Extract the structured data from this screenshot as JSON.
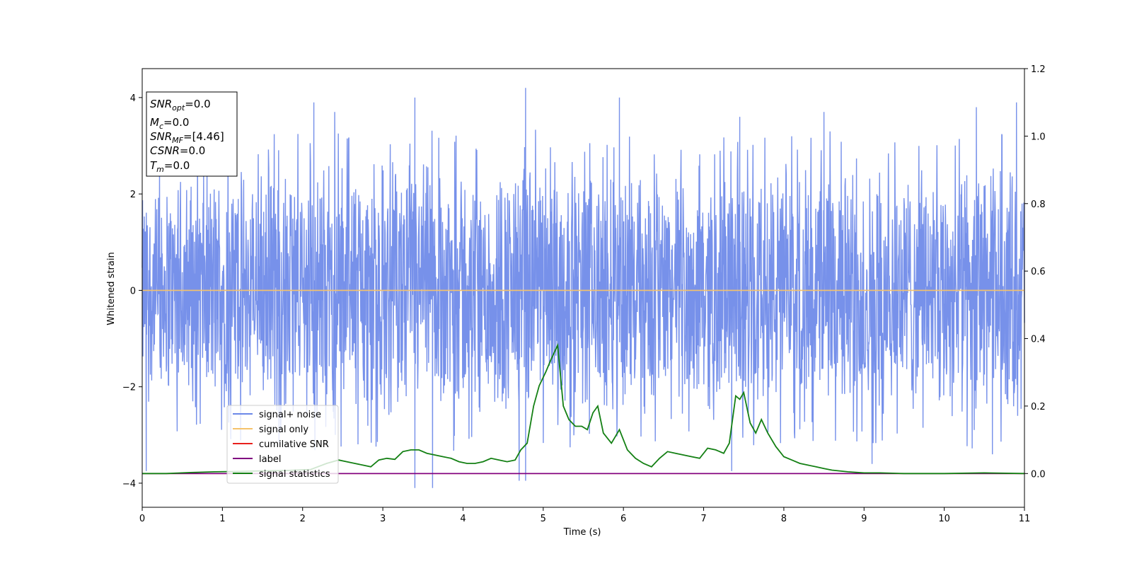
{
  "chart_data": {
    "type": "line",
    "xlabel": "Time (s)",
    "ylabel": "Whitened strain",
    "xlim": [
      0,
      11
    ],
    "ylim": [
      -4.5,
      4.6
    ],
    "y2lim": [
      -0.1,
      1.2
    ],
    "xticks": [
      "0",
      "1",
      "2",
      "3",
      "4",
      "5",
      "6",
      "7",
      "8",
      "9",
      "10",
      "11"
    ],
    "yticks": [
      "−4",
      "−2",
      "0",
      "2",
      "4"
    ],
    "y2ticks": [
      "0.0",
      "0.2",
      "0.4",
      "0.6",
      "0.8",
      "1.0",
      "1.2"
    ],
    "legend_position": "lower-left",
    "info_box": {
      "snr_opt": "=0.0",
      "mc": "=0.0",
      "snr_mf": "=[4.46]",
      "csnr": "=0.0",
      "tm": "=0.0"
    },
    "series": [
      {
        "name": "signal+ noise",
        "color": "#6b88e8",
        "axis": "left",
        "description_type": "noise",
        "envelope_upper": [
          [
            0,
            2.2
          ],
          [
            0.5,
            2.6
          ],
          [
            1,
            2.7
          ],
          [
            1.5,
            2.8
          ],
          [
            2,
            2.9
          ],
          [
            2.5,
            3.0
          ],
          [
            3,
            3.0
          ],
          [
            3.5,
            2.9
          ],
          [
            4,
            2.9
          ],
          [
            4.5,
            2.9
          ],
          [
            5,
            2.9
          ],
          [
            5.5,
            2.8
          ],
          [
            6,
            2.9
          ],
          [
            6.5,
            2.7
          ],
          [
            7,
            2.8
          ],
          [
            7.5,
            2.8
          ],
          [
            8,
            2.8
          ],
          [
            8.5,
            2.9
          ],
          [
            9,
            2.8
          ],
          [
            9.5,
            2.8
          ],
          [
            10,
            2.8
          ],
          [
            10.5,
            2.9
          ],
          [
            11,
            2.9
          ]
        ],
        "peaks": [
          [
            2.14,
            3.9
          ],
          [
            2.4,
            3.7
          ],
          [
            3.4,
            4.0
          ],
          [
            4.78,
            4.2
          ],
          [
            5.95,
            4.0
          ],
          [
            7.45,
            3.6
          ],
          [
            8.5,
            3.7
          ],
          [
            10.4,
            3.8
          ],
          [
            10.9,
            3.9
          ]
        ],
        "troughs": [
          [
            0.05,
            -3.75
          ],
          [
            3.4,
            -4.1
          ],
          [
            3.62,
            -4.1
          ],
          [
            4.7,
            -3.95
          ],
          [
            4.78,
            -3.95
          ],
          [
            7.35,
            -3.75
          ],
          [
            9.1,
            -3.6
          ],
          [
            10.6,
            -3.4
          ]
        ]
      },
      {
        "name": "signal only",
        "color": "#f5c26b",
        "axis": "left",
        "x": [
          0,
          11
        ],
        "y": [
          0,
          0
        ]
      },
      {
        "name": "cumilative SNR",
        "color": "#e8201c",
        "axis": "right",
        "x": [
          0,
          11
        ],
        "y": [
          0,
          0
        ]
      },
      {
        "name": "label",
        "color": "#800080",
        "axis": "right",
        "x": [
          0,
          11
        ],
        "y": [
          0,
          0
        ]
      },
      {
        "name": "signal statistics",
        "color": "#148014",
        "axis": "right",
        "x": [
          0,
          0.3,
          0.6,
          0.9,
          1.2,
          1.5,
          1.8,
          2.1,
          2.3,
          2.45,
          2.55,
          2.65,
          2.75,
          2.85,
          2.95,
          3.05,
          3.15,
          3.25,
          3.35,
          3.45,
          3.55,
          3.65,
          3.75,
          3.85,
          3.95,
          4.05,
          4.15,
          4.25,
          4.35,
          4.45,
          4.55,
          4.65,
          4.72,
          4.8,
          4.88,
          4.95,
          5.03,
          5.1,
          5.18,
          5.25,
          5.32,
          5.4,
          5.48,
          5.55,
          5.62,
          5.68,
          5.75,
          5.85,
          5.95,
          6.05,
          6.15,
          6.25,
          6.35,
          6.45,
          6.55,
          6.65,
          6.75,
          6.85,
          6.95,
          7.05,
          7.15,
          7.25,
          7.32,
          7.4,
          7.45,
          7.5,
          7.58,
          7.65,
          7.72,
          7.8,
          7.9,
          8.0,
          8.1,
          8.2,
          8.3,
          8.4,
          8.5,
          8.6,
          8.8,
          9.0,
          9.2,
          9.5,
          10.0,
          10.5,
          11.0
        ],
        "y": [
          0,
          0,
          0.003,
          0.005,
          0.006,
          0.008,
          0.009,
          0.012,
          0.03,
          0.04,
          0.035,
          0.03,
          0.025,
          0.02,
          0.04,
          0.045,
          0.042,
          0.065,
          0.07,
          0.07,
          0.06,
          0.055,
          0.05,
          0.045,
          0.035,
          0.03,
          0.03,
          0.035,
          0.045,
          0.04,
          0.035,
          0.04,
          0.07,
          0.09,
          0.2,
          0.26,
          0.3,
          0.34,
          0.38,
          0.2,
          0.16,
          0.14,
          0.14,
          0.13,
          0.18,
          0.2,
          0.12,
          0.09,
          0.13,
          0.07,
          0.045,
          0.03,
          0.02,
          0.045,
          0.065,
          0.06,
          0.055,
          0.05,
          0.045,
          0.075,
          0.07,
          0.06,
          0.09,
          0.23,
          0.22,
          0.24,
          0.15,
          0.12,
          0.16,
          0.12,
          0.08,
          0.05,
          0.04,
          0.03,
          0.025,
          0.02,
          0.015,
          0.01,
          0.005,
          0.002,
          0.002,
          0,
          0,
          0.002,
          0
        ]
      }
    ]
  }
}
